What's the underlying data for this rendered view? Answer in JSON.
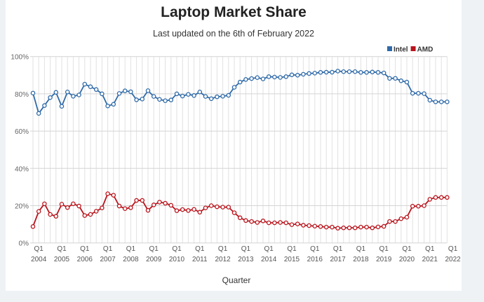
{
  "chart_data": {
    "type": "line",
    "title": "Laptop Market Share",
    "subtitle": "Last updated on the 6th of February 2022",
    "xlabel": "Quarter",
    "ylabel": "",
    "ylim": [
      0,
      100
    ],
    "y_ticks": [
      "0%",
      "20%",
      "40%",
      "60%",
      "80%",
      "100%"
    ],
    "x_start": "2003 Q4",
    "x_end": "2021 Q4",
    "x_tick_quarter_label": "Q1",
    "x_tick_years": [
      "2004",
      "2005",
      "2006",
      "2007",
      "2008",
      "2009",
      "2010",
      "2011",
      "2012",
      "2013",
      "2014",
      "2015",
      "2016",
      "2017",
      "2018",
      "2019",
      "2020",
      "2021",
      "2022"
    ],
    "grid": true,
    "legend_position": "top-right",
    "series": [
      {
        "name": "Intel",
        "color": "#2f6aa8",
        "values": [
          80.4,
          69.5,
          73.7,
          78,
          80.8,
          73.3,
          81,
          78.7,
          79.4,
          85.2,
          83.8,
          82.3,
          80,
          73.5,
          74.4,
          80.2,
          81.6,
          81.1,
          76.8,
          77.2,
          81.7,
          78.6,
          77,
          76.3,
          76.7,
          80,
          78.8,
          79.7,
          79.1,
          81,
          78.6,
          77.4,
          78.4,
          78.7,
          79.2,
          83.5,
          86.3,
          87.7,
          88.2,
          88.7,
          88,
          89.2,
          89,
          88.8,
          89.2,
          90.2,
          90,
          90.5,
          90.9,
          91.1,
          91.5,
          91.6,
          91.6,
          92.2,
          91.9,
          91.9,
          91.9,
          91.5,
          91.5,
          91.7,
          91.5,
          91.2,
          88.3,
          88.3,
          87,
          86.3,
          80.3,
          80.3,
          80.1,
          76.6,
          75.7,
          75.7,
          75.7
        ]
      },
      {
        "name": "AMD",
        "color": "#b8141c",
        "values": [
          8.8,
          16.9,
          21,
          15.3,
          14.3,
          20.8,
          19,
          21,
          19.8,
          14.7,
          15.3,
          17,
          18.8,
          26.4,
          25.6,
          19.8,
          18.4,
          18.9,
          22.8,
          22.8,
          17.5,
          20.4,
          21.9,
          21.3,
          20.2,
          17.3,
          17.9,
          17.4,
          18,
          16.5,
          18.8,
          20,
          19.4,
          19.2,
          19.2,
          16.2,
          13.5,
          12,
          11.5,
          11,
          11.8,
          10.8,
          10.8,
          11,
          10.8,
          9.8,
          10.2,
          9.5,
          9.3,
          9,
          8.8,
          8.5,
          8.5,
          7.9,
          8.1,
          8.1,
          8.1,
          8.5,
          8.5,
          8.1,
          8.6,
          8.9,
          11.5,
          11.5,
          13,
          13.8,
          19.7,
          19.7,
          20,
          23.4,
          24.4,
          24.4,
          24.4
        ]
      }
    ]
  }
}
